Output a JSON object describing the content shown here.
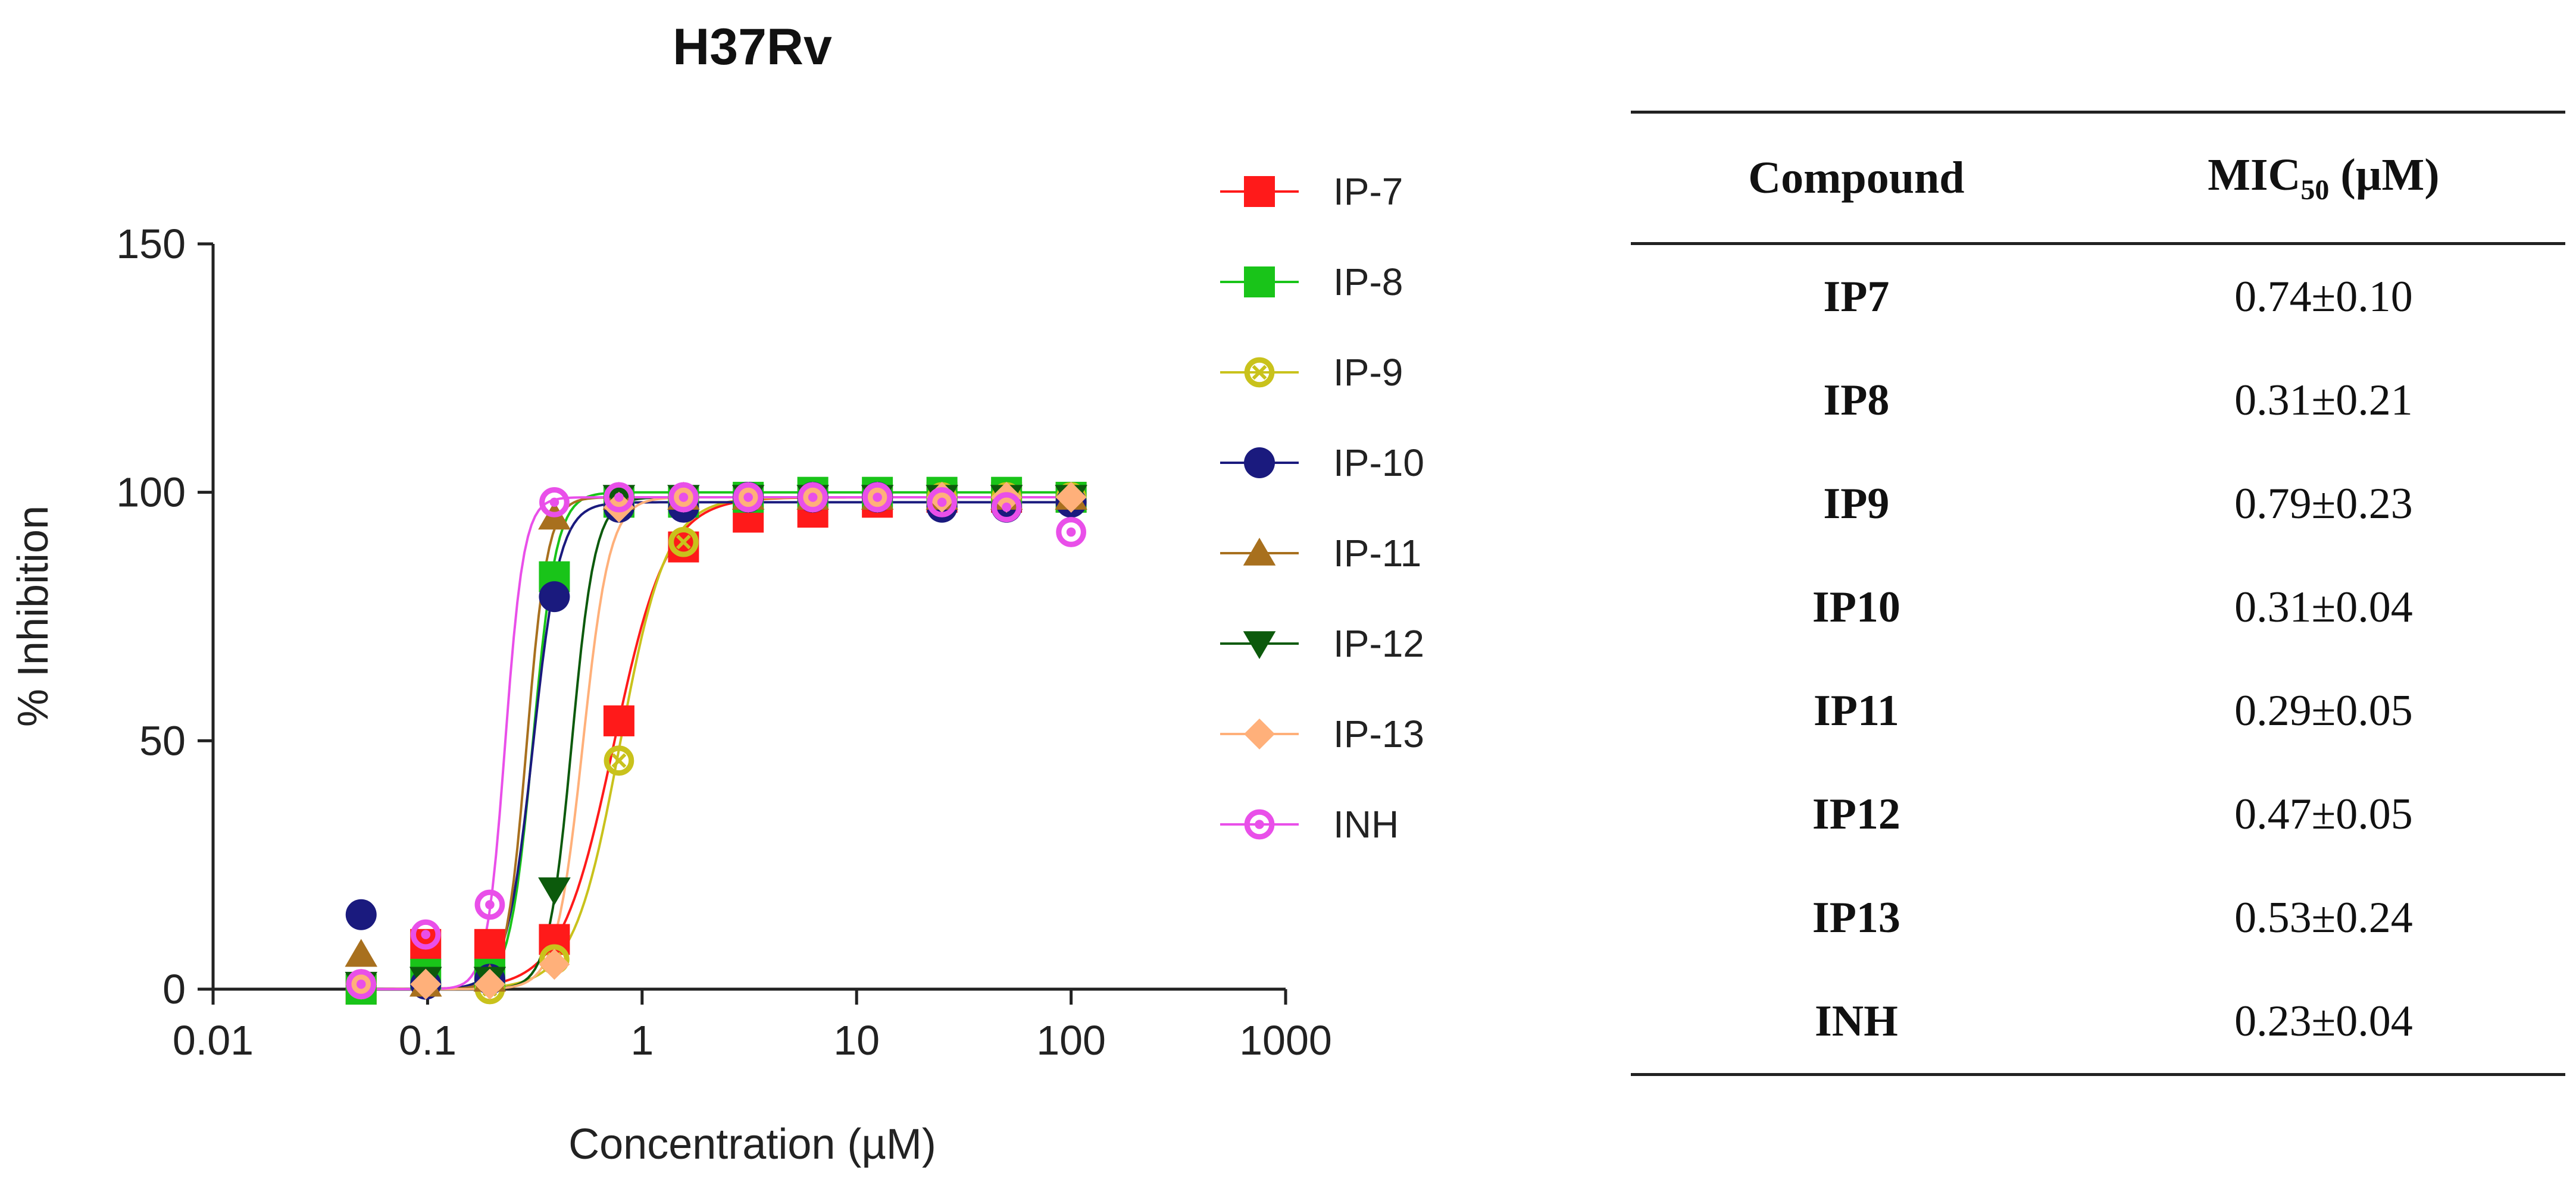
{
  "chart_data": {
    "type": "scatter",
    "title": "H37Rv",
    "xlabel": "Concentration (µM)",
    "ylabel": "% Inhibition",
    "xscale": "log",
    "xlim": [
      0.01,
      1000
    ],
    "ylim": [
      0,
      150
    ],
    "x_ticks": [
      0.01,
      0.1,
      1,
      10,
      100,
      1000
    ],
    "x_tick_labels": [
      "0.01",
      "0.1",
      "1",
      "10",
      "100",
      "1000"
    ],
    "y_ticks": [
      0,
      50,
      100,
      150
    ],
    "y_tick_labels": [
      "0",
      "50",
      "100",
      "150"
    ],
    "legend_position": "right",
    "x": [
      0.049,
      0.098,
      0.195,
      0.39,
      0.78,
      1.56,
      3.125,
      6.25,
      12.5,
      25,
      50,
      100
    ],
    "series": [
      {
        "name": "IP-7",
        "color": "#ff1a1a",
        "marker": "square",
        "values": [
          0,
          9,
          9,
          10,
          54,
          89,
          95,
          96,
          98,
          99,
          99,
          99
        ]
      },
      {
        "name": "IP-8",
        "color": "#19c419",
        "marker": "square",
        "values": [
          0,
          3,
          3,
          83,
          98,
          98,
          99,
          100,
          100,
          100,
          100,
          99
        ]
      },
      {
        "name": "IP-9",
        "color": "#c9c21c",
        "marker": "circle-x",
        "values": [
          1,
          1,
          0,
          6,
          46,
          90,
          99,
          99,
          99,
          99,
          99,
          99
        ]
      },
      {
        "name": "IP-10",
        "color": "#1a1a7e",
        "marker": "circle",
        "values": [
          15,
          1,
          2,
          79,
          97,
          97,
          99,
          99,
          99,
          97,
          97,
          98
        ]
      },
      {
        "name": "IP-11",
        "color": "#a8701e",
        "marker": "triangle-up",
        "values": [
          7,
          1,
          2,
          95,
          99,
          99,
          99,
          99,
          99,
          99,
          99,
          99
        ]
      },
      {
        "name": "IP-12",
        "color": "#0c5a0c",
        "marker": "triangle-down",
        "values": [
          1,
          2,
          2,
          20,
          99,
          99,
          99,
          99,
          99,
          99,
          99,
          99
        ]
      },
      {
        "name": "IP-13",
        "color": "#ffb07a",
        "marker": "diamond",
        "values": [
          1,
          1,
          1,
          5,
          97,
          99,
          99,
          99,
          99,
          99,
          99,
          99
        ]
      },
      {
        "name": "INH",
        "color": "#e94fe9",
        "marker": "circle-dot",
        "values": [
          1,
          11,
          17,
          98,
          99,
          99,
          99,
          99,
          99,
          98,
          97,
          92
        ]
      }
    ],
    "curves": [
      {
        "name": "IP-7",
        "ic50": 0.74,
        "hill": 3.5,
        "top": 99
      },
      {
        "name": "IP-8",
        "ic50": 0.31,
        "hill": 8,
        "top": 100
      },
      {
        "name": "IP-9",
        "ic50": 0.79,
        "hill": 4,
        "top": 99
      },
      {
        "name": "IP-10",
        "ic50": 0.31,
        "hill": 7,
        "top": 98
      },
      {
        "name": "IP-11",
        "ic50": 0.29,
        "hill": 9,
        "top": 99
      },
      {
        "name": "IP-12",
        "ic50": 0.47,
        "hill": 8,
        "top": 99
      },
      {
        "name": "IP-13",
        "ic50": 0.53,
        "hill": 7,
        "top": 99
      },
      {
        "name": "INH",
        "ic50": 0.23,
        "hill": 10,
        "top": 99
      }
    ]
  },
  "table": {
    "headers": {
      "compound": "Compound",
      "mic_prefix": "MIC",
      "mic_sub": "50",
      "mic_unit": " (µM)"
    },
    "rows": [
      {
        "compound": "IP7",
        "mic": "0.74±0.10"
      },
      {
        "compound": "IP8",
        "mic": "0.31±0.21"
      },
      {
        "compound": "IP9",
        "mic": "0.79±0.23"
      },
      {
        "compound": "IP10",
        "mic": "0.31±0.04"
      },
      {
        "compound": "IP11",
        "mic": "0.29±0.05"
      },
      {
        "compound": "IP12",
        "mic": "0.47±0.05"
      },
      {
        "compound": "IP13",
        "mic": "0.53±0.24"
      },
      {
        "compound": "INH",
        "mic": "0.23±0.04"
      }
    ]
  }
}
